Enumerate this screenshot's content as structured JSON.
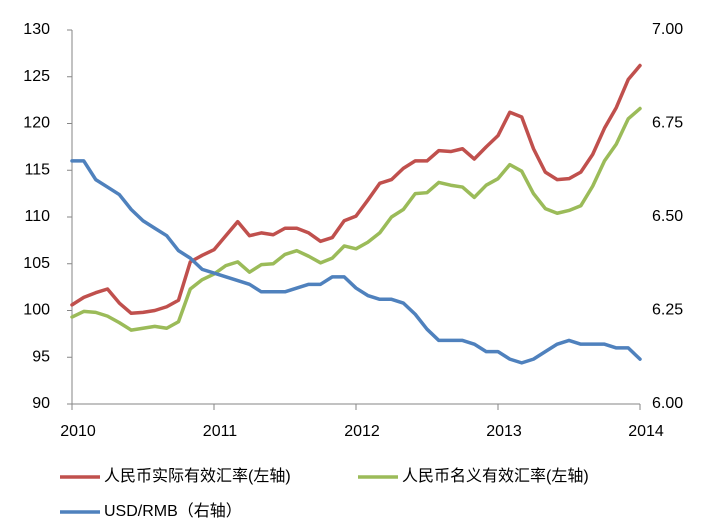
{
  "chart_data": {
    "type": "line",
    "x": [
      2010,
      2010.083,
      2010.167,
      2010.25,
      2010.333,
      2010.417,
      2010.5,
      2010.583,
      2010.667,
      2010.75,
      2010.833,
      2010.917,
      2011,
      2011.083,
      2011.167,
      2011.25,
      2011.333,
      2011.417,
      2011.5,
      2011.583,
      2011.667,
      2011.75,
      2011.833,
      2011.917,
      2012,
      2012.083,
      2012.167,
      2012.25,
      2012.333,
      2012.417,
      2012.5,
      2012.583,
      2012.667,
      2012.75,
      2012.833,
      2012.917,
      2013,
      2013.083,
      2013.167,
      2013.25,
      2013.333,
      2013.417,
      2013.5,
      2013.583,
      2013.667,
      2013.75,
      2013.833,
      2013.917,
      2014
    ],
    "series": [
      {
        "name": "人民币实际有效汇率(左轴)",
        "color": "#c0504d",
        "values": [
          100.6,
          101.4,
          101.9,
          102.3,
          100.8,
          99.7,
          99.8,
          100.0,
          100.4,
          101.1,
          105.2,
          105.9,
          106.5,
          108.0,
          109.5,
          108.0,
          108.3,
          108.1,
          108.8,
          108.8,
          108.3,
          107.4,
          107.8,
          109.6,
          110.1,
          111.8,
          113.6,
          114.0,
          115.2,
          116.0,
          116.0,
          117.1,
          117.0,
          117.3,
          116.2,
          117.5,
          118.7,
          121.2,
          120.7,
          117.3,
          114.8,
          114.0,
          114.1,
          114.8,
          116.7,
          119.5,
          121.7,
          124.7,
          126.2
        ]
      },
      {
        "name": "人民币名义有效汇率(左轴)",
        "color": "#9bbb59",
        "values": [
          99.3,
          99.9,
          99.8,
          99.4,
          98.7,
          97.9,
          98.1,
          98.3,
          98.1,
          98.8,
          102.3,
          103.3,
          103.9,
          104.8,
          105.2,
          104.1,
          104.9,
          105.0,
          106.0,
          106.4,
          105.8,
          105.1,
          105.6,
          106.9,
          106.6,
          107.3,
          108.3,
          110.0,
          110.8,
          112.5,
          112.6,
          113.7,
          113.4,
          113.2,
          112.1,
          113.4,
          114.1,
          115.6,
          114.9,
          112.5,
          110.9,
          110.4,
          110.7,
          111.2,
          113.3,
          116.0,
          117.8,
          120.5,
          121.6
        ]
      },
      {
        "name": "USD/RMB（右轴）",
        "color": "#4f81bd",
        "axis": "y2",
        "values": [
          6.65,
          6.65,
          6.6,
          6.58,
          6.56,
          6.52,
          6.49,
          6.47,
          6.45,
          6.41,
          6.39,
          6.36,
          6.35,
          6.34,
          6.33,
          6.32,
          6.3,
          6.3,
          6.3,
          6.31,
          6.32,
          6.32,
          6.34,
          6.34,
          6.31,
          6.29,
          6.28,
          6.28,
          6.27,
          6.24,
          6.2,
          6.17,
          6.17,
          6.17,
          6.16,
          6.14,
          6.14,
          6.12,
          6.11,
          6.12,
          6.14,
          6.16,
          6.17,
          6.16,
          6.16,
          6.16,
          6.15,
          6.15,
          6.12
        ]
      }
    ],
    "xlim": [
      2010,
      2014
    ],
    "xticks": [
      2010,
      2011,
      2012,
      2013,
      2014
    ],
    "ylim": [
      90,
      130
    ],
    "yticks": [
      90,
      95,
      100,
      105,
      110,
      115,
      120,
      125,
      130
    ],
    "y2lim": [
      6,
      7
    ],
    "y2ticks": [
      {
        "value": 6,
        "label": "6.00"
      },
      {
        "value": 6.25,
        "label": "6.25"
      },
      {
        "value": 6.5,
        "label": "6.50"
      },
      {
        "value": 6.75,
        "label": "6.75"
      },
      {
        "value": 7,
        "label": "7.00"
      }
    ],
    "legend": "bottom"
  }
}
